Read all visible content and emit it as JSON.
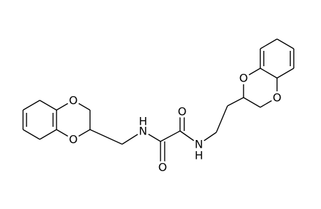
{
  "atoms": [
    {
      "label": "O"
    },
    {
      "label": "O"
    },
    {
      "label": "N",
      "hydrogen": "H"
    },
    {
      "label": "O"
    },
    {
      "label": "O"
    },
    {
      "label": "N",
      "hydrogen": "H"
    },
    {
      "label": "O"
    },
    {
      "label": "O"
    }
  ]
}
